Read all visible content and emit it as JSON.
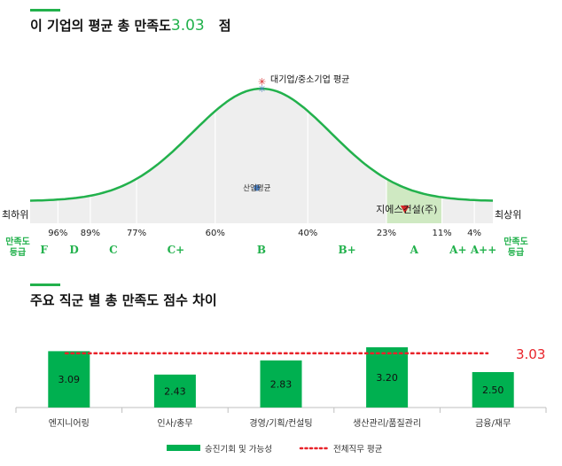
{
  "section1": {
    "title": "이 기업의 평균 총 만족도",
    "score": "3.03",
    "unit": "점"
  },
  "section2": {
    "title": "주요 직군 별 총 만족도 점수 차이"
  },
  "chart_data": [
    {
      "type": "area",
      "title": "이 기업의 평균 총 만족도",
      "left_label": "최하위",
      "right_label": "최상위",
      "row_label": "만족도\n등급",
      "row_label_right": "만족도\n등급",
      "boundaries": [
        {
          "label": "96%",
          "pos": 0.06
        },
        {
          "label": "89%",
          "pos": 0.13
        },
        {
          "label": "77%",
          "pos": 0.23
        },
        {
          "label": "60%",
          "pos": 0.4
        },
        {
          "label": "40%",
          "pos": 0.6
        },
        {
          "label": "23%",
          "pos": 0.77
        },
        {
          "label": "11%",
          "pos": 0.89
        },
        {
          "label": "4%",
          "pos": 0.96
        }
      ],
      "grades": [
        "F",
        "D",
        "C",
        "C+",
        "B",
        "B+",
        "A",
        "A+",
        "A++"
      ],
      "markers": [
        {
          "label": "대기업/중소기업 평균",
          "pos": 0.5
        },
        {
          "label": "산업평균",
          "pos": 0.49
        },
        {
          "label": "지에스건설(주)",
          "pos": 0.81
        }
      ],
      "highlight_band": [
        0.77,
        0.89
      ],
      "colors": {
        "curve": "#22b14c",
        "fill": "#eeeeee",
        "highlight": "#cfe9c2",
        "marker_red": "#d62728",
        "marker_blue": "#4a7fc1"
      }
    },
    {
      "type": "bar",
      "title": "주요 직군 별 총 만족도 점수 차이",
      "categories": [
        "엔지니어링",
        "인사/총무",
        "경영/기획/컨설팅",
        "생산관리/품질관리",
        "금융/재무"
      ],
      "series": [
        {
          "name": "승진기회 및 가능성",
          "values": [
            3.09,
            2.43,
            2.83,
            3.2,
            2.5
          ]
        }
      ],
      "reference": {
        "name": "전체직무 평균",
        "value": 3.03,
        "label": "3.03"
      },
      "ylim": [
        1.5,
        3.5
      ],
      "colors": {
        "bar": "#00b050",
        "reference": "#e8232a"
      }
    }
  ]
}
